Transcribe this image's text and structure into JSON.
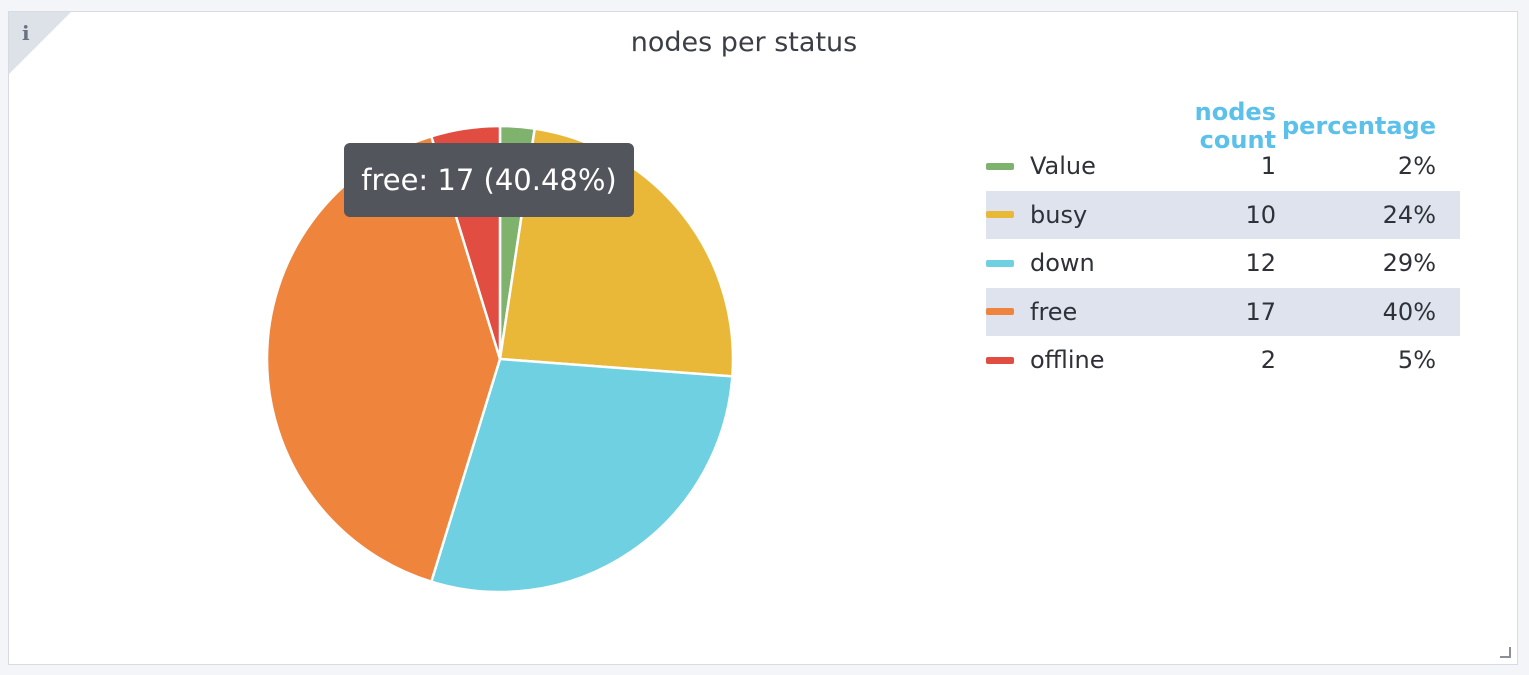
{
  "panel": {
    "title": "nodes per status",
    "info_icon": "info-icon"
  },
  "tooltip": {
    "text": "free: 17 (40.48%)"
  },
  "legend": {
    "col_count": "nodes count",
    "col_pct": "percentage"
  },
  "chart_data": {
    "type": "pie",
    "title": "nodes per status",
    "legend_placement": "right",
    "slices": [
      {
        "name": "Value",
        "value": 1,
        "percent": "2%",
        "color": "#7eb26d"
      },
      {
        "name": "busy",
        "value": 10,
        "percent": "24%",
        "color": "#eab839"
      },
      {
        "name": "down",
        "value": 12,
        "percent": "29%",
        "color": "#6ed0e0"
      },
      {
        "name": "free",
        "value": 17,
        "percent": "40%",
        "color": "#ef843c"
      },
      {
        "name": "offline",
        "value": 2,
        "percent": "5%",
        "color": "#e24d42"
      }
    ]
  }
}
